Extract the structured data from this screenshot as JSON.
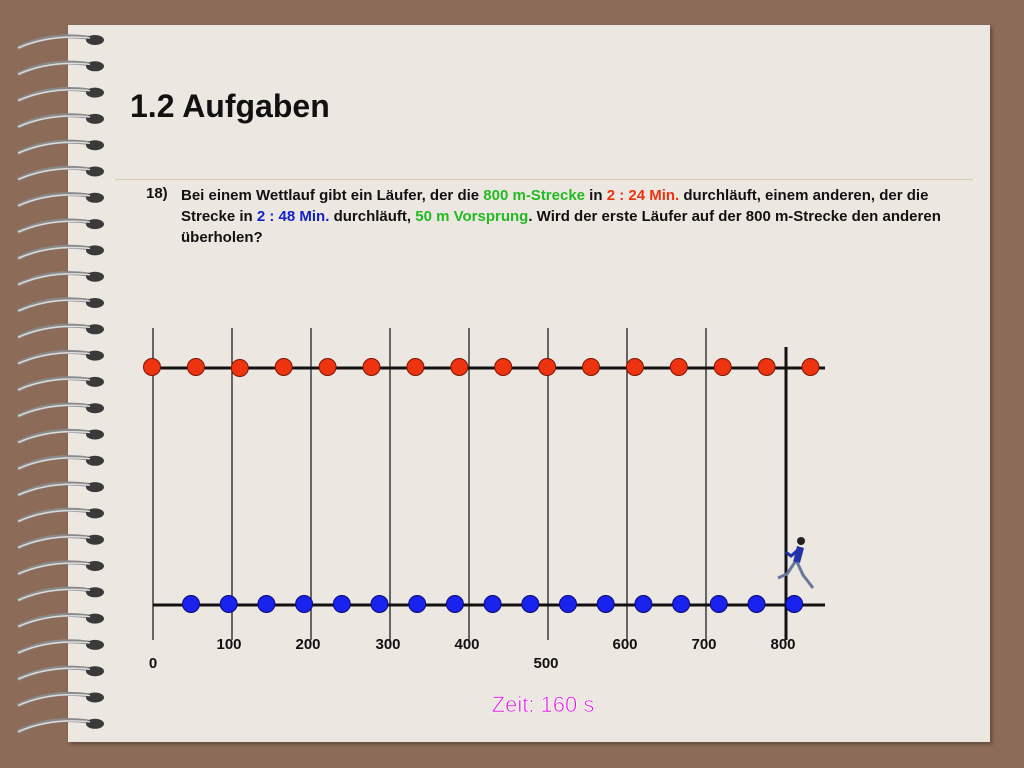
{
  "header": {
    "title": "1.2 Aufgaben"
  },
  "task": {
    "number": "18)",
    "segments": [
      {
        "text": "Bei einem Wettlauf gibt ein Läufer, der die ",
        "color": "#111111"
      },
      {
        "text": "800 m-Strecke",
        "color": "#22bb22"
      },
      {
        "text": " in ",
        "color": "#111111"
      },
      {
        "text": "2 : 24 Min.",
        "color": "#ee3311"
      },
      {
        "text": " durchläuft, einem anderen, der die Strecke in ",
        "color": "#111111"
      },
      {
        "text": "2 : 48 Min.",
        "color": "#1122cc"
      },
      {
        "text": " durchläuft, ",
        "color": "#111111"
      },
      {
        "text": "50 m Vorsprung",
        "color": "#22bb22"
      },
      {
        "text": ". Wird der erste Läufer auf der 800 m-Strecke den anderen überholen?",
        "color": "#111111"
      }
    ]
  },
  "diagram": {
    "axis_labels": [
      "0",
      "100",
      "200",
      "300",
      "400",
      "500",
      "600",
      "700",
      "800"
    ],
    "time_label": "Zeit: 160 s"
  }
}
